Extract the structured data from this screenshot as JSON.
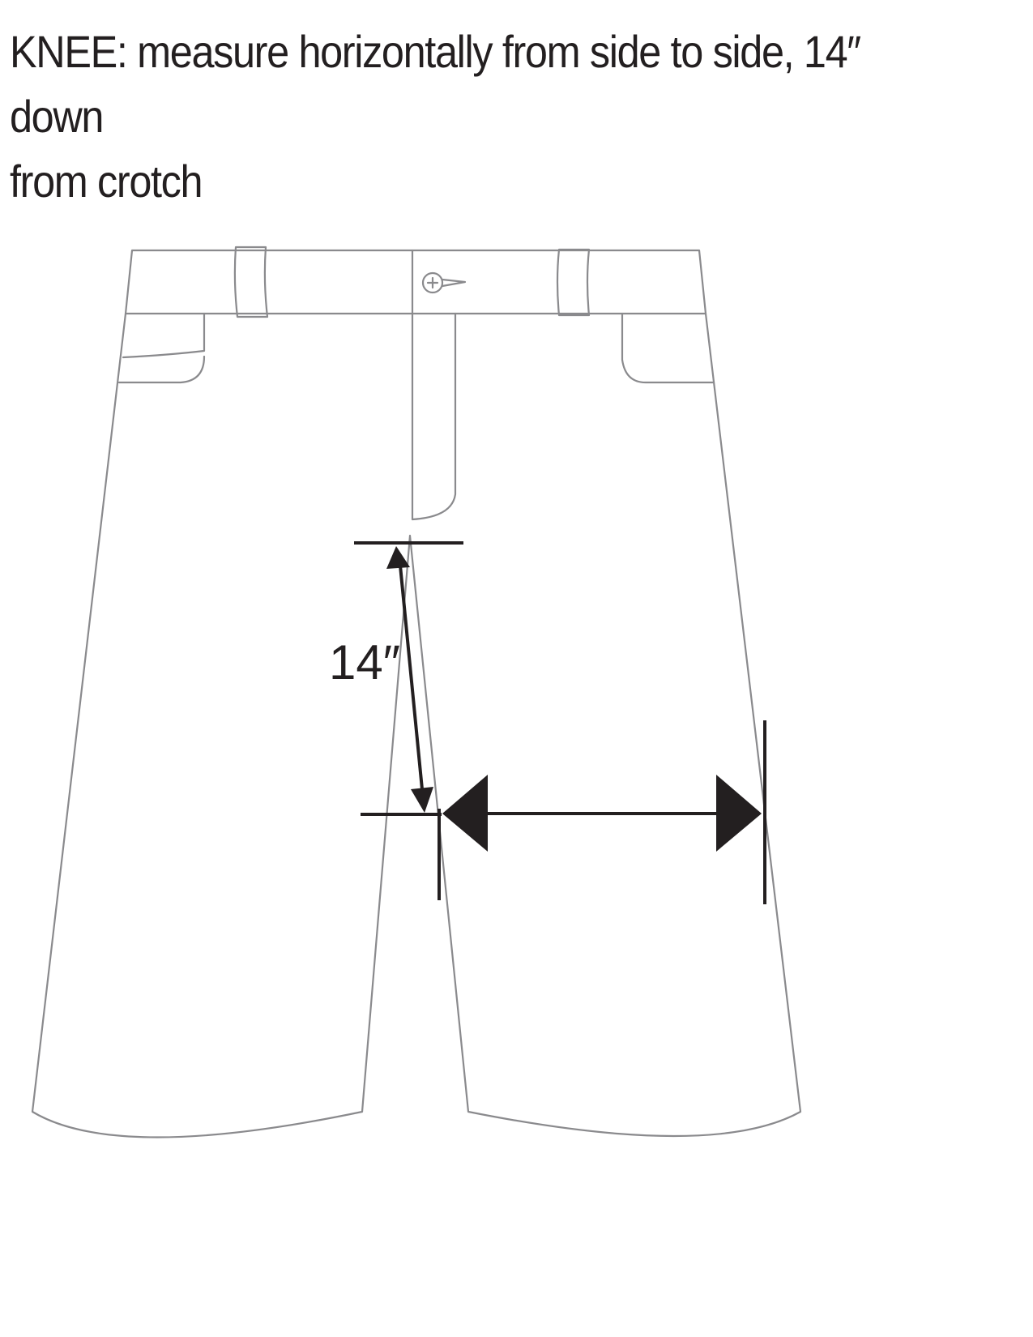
{
  "instruction": {
    "line1": "KNEE:  measure horizontally from side to side, 14″ down",
    "line2": "from crotch"
  },
  "dimension": {
    "label": "14″"
  },
  "colors": {
    "text": "#231f20",
    "garment_outline": "#8a8a8d",
    "measure_marks": "#231f20"
  }
}
